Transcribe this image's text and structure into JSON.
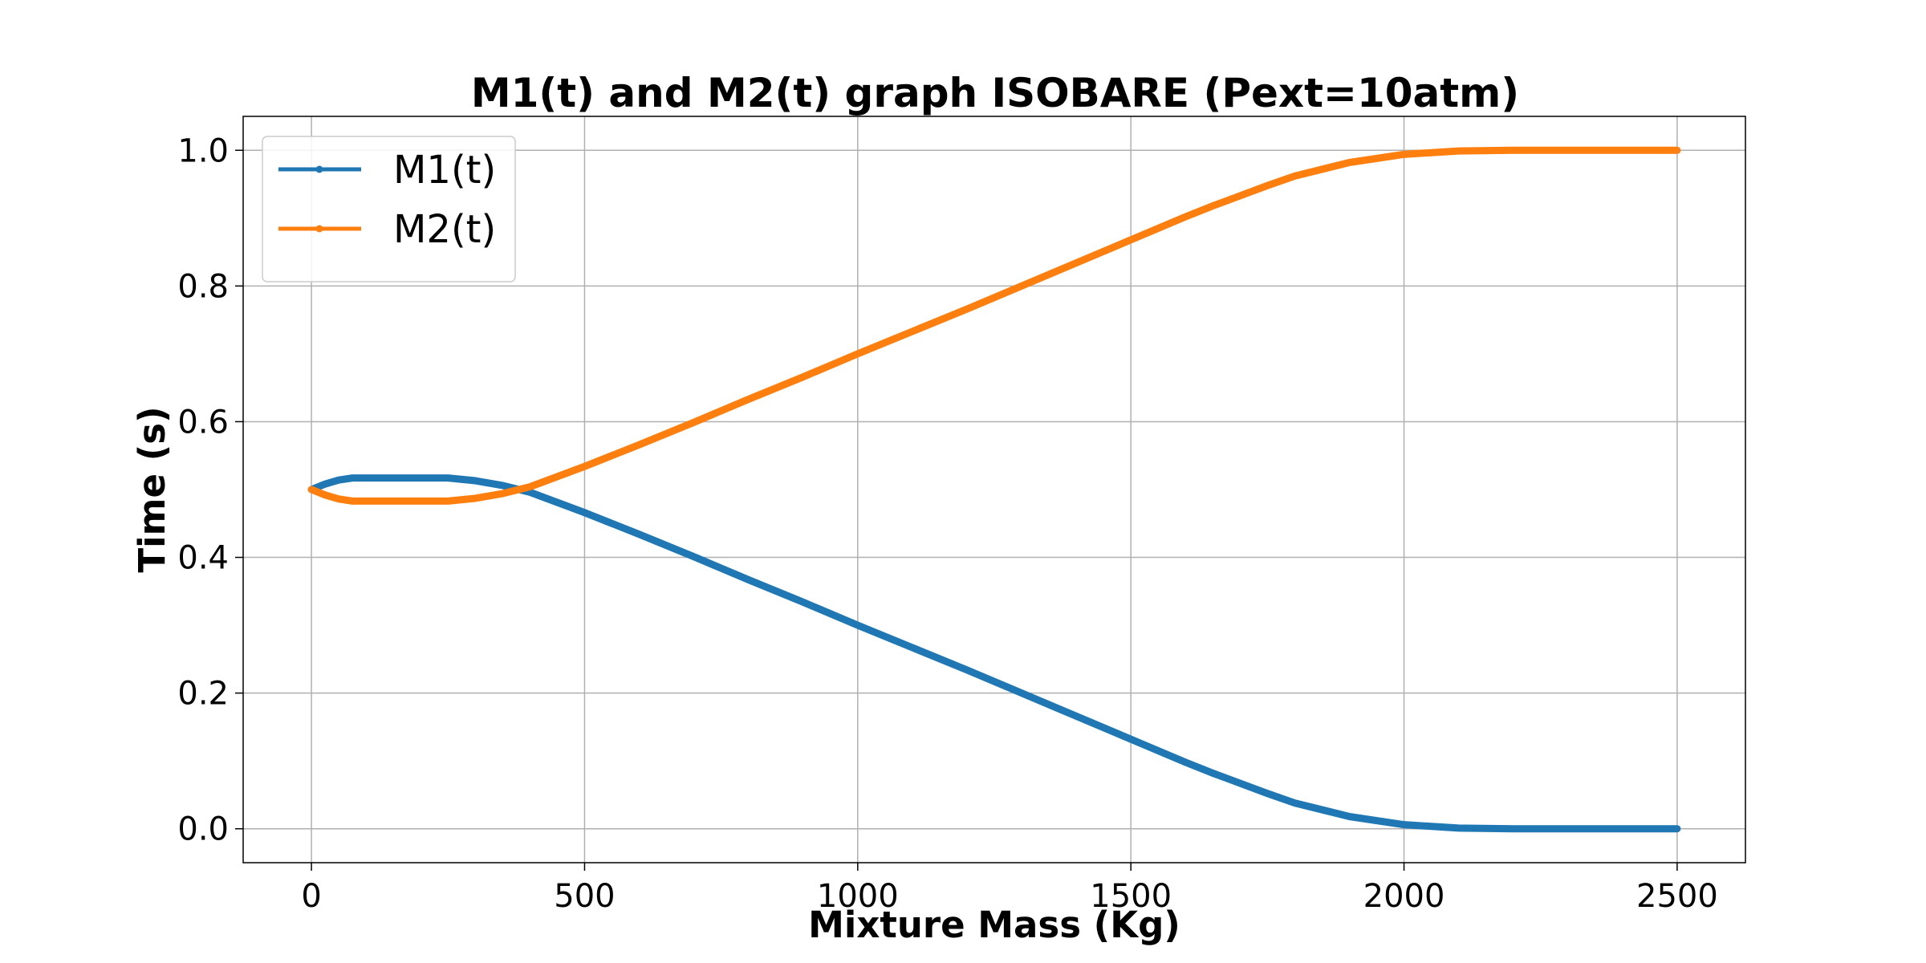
{
  "chart_data": {
    "type": "line",
    "title": "M1(t) and M2(t) graph ISOBARE (Pext=10atm)",
    "xlabel": "Mixture Mass (Kg)",
    "ylabel": "Time (s)",
    "xlim": [
      -125,
      2625
    ],
    "ylim": [
      -0.05,
      1.05
    ],
    "xticks": [
      0,
      500,
      1000,
      1500,
      2000,
      2500
    ],
    "yticks": [
      0.0,
      0.2,
      0.4,
      0.6,
      0.8,
      1.0
    ],
    "xtick_labels": [
      "0",
      "500",
      "1000",
      "1500",
      "2000",
      "2500"
    ],
    "ytick_labels": [
      "0.0",
      "0.2",
      "0.4",
      "0.6",
      "0.8",
      "1.0"
    ],
    "grid": true,
    "legend_position": "top-left",
    "series": [
      {
        "name": "M1(t)",
        "color": "#1f77b4",
        "x": [
          0,
          25,
          50,
          75,
          100,
          150,
          200,
          250,
          300,
          350,
          400,
          500,
          600,
          700,
          800,
          900,
          1000,
          1100,
          1200,
          1300,
          1400,
          1500,
          1550,
          1600,
          1650,
          1700,
          1750,
          1800,
          1900,
          2000,
          2100,
          2200,
          2300,
          2400,
          2500
        ],
        "y": [
          0.5,
          0.508,
          0.514,
          0.517,
          0.517,
          0.517,
          0.517,
          0.517,
          0.513,
          0.506,
          0.496,
          0.466,
          0.434,
          0.401,
          0.367,
          0.334,
          0.3,
          0.267,
          0.234,
          0.2,
          0.166,
          0.132,
          0.115,
          0.098,
          0.082,
          0.067,
          0.052,
          0.038,
          0.018,
          0.006,
          0.001,
          0.0,
          0.0,
          0.0,
          0.0
        ]
      },
      {
        "name": "M2(t)",
        "color": "#ff7f0e",
        "x": [
          0,
          25,
          50,
          75,
          100,
          150,
          200,
          250,
          300,
          350,
          400,
          500,
          600,
          700,
          800,
          900,
          1000,
          1100,
          1200,
          1300,
          1400,
          1500,
          1550,
          1600,
          1650,
          1700,
          1750,
          1800,
          1900,
          2000,
          2100,
          2200,
          2300,
          2400,
          2500
        ],
        "y": [
          0.5,
          0.492,
          0.486,
          0.483,
          0.483,
          0.483,
          0.483,
          0.483,
          0.487,
          0.494,
          0.504,
          0.534,
          0.566,
          0.599,
          0.633,
          0.666,
          0.7,
          0.733,
          0.766,
          0.8,
          0.834,
          0.868,
          0.885,
          0.902,
          0.918,
          0.933,
          0.948,
          0.962,
          0.982,
          0.994,
          0.999,
          1.0,
          1.0,
          1.0,
          1.0
        ]
      }
    ]
  }
}
